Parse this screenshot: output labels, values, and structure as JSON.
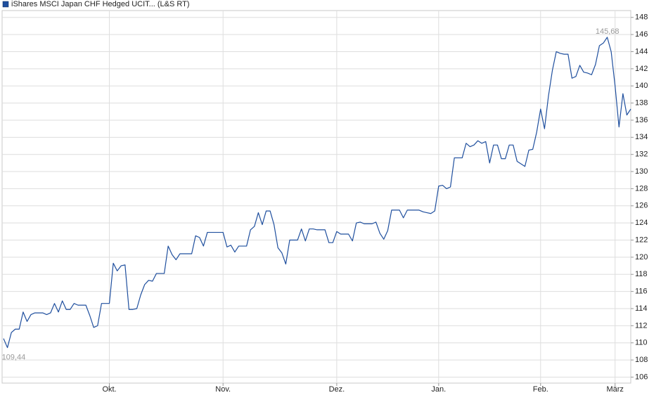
{
  "chart_data": {
    "type": "line",
    "categories": [
      null,
      null,
      null,
      null,
      null,
      null,
      null,
      null,
      null,
      null,
      null,
      null,
      null,
      null,
      null,
      null,
      null,
      null,
      null,
      null,
      null,
      null,
      null,
      null,
      null,
      null,
      null,
      "Okt.",
      null,
      null,
      null,
      null,
      null,
      null,
      null,
      null,
      null,
      null,
      null,
      null,
      null,
      null,
      null,
      null,
      null,
      null,
      null,
      null,
      null,
      null,
      null,
      null,
      null,
      null,
      null,
      null,
      "Nov.",
      null,
      null,
      null,
      null,
      null,
      null,
      null,
      null,
      null,
      null,
      null,
      null,
      null,
      null,
      null,
      null,
      null,
      null,
      null,
      null,
      null,
      null,
      null,
      null,
      null,
      null,
      null,
      null,
      "Dez.",
      null,
      null,
      null,
      null,
      null,
      null,
      null,
      null,
      null,
      null,
      null,
      null,
      null,
      null,
      null,
      null,
      null,
      null,
      null,
      null,
      null,
      null,
      null,
      null,
      null,
      "Jan.",
      null,
      null,
      null,
      null,
      null,
      null,
      null,
      null,
      null,
      null,
      null,
      null,
      null,
      null,
      null,
      null,
      null,
      null,
      null,
      null,
      null,
      null,
      null,
      null,
      null,
      "Feb.",
      null,
      null,
      null,
      null,
      null,
      null,
      null,
      null,
      null,
      null,
      null,
      null,
      null,
      null,
      null,
      null,
      null,
      null,
      "März",
      null,
      null,
      null,
      null
    ],
    "series": [
      {
        "name": "iShares MSCI Japan CHF Hedged UCIT... (L&S RT)",
        "color": "#1f4f9e",
        "values": [
          110.5,
          109.44,
          111.2,
          111.6,
          111.6,
          113.6,
          112.5,
          113.3,
          113.5,
          113.5,
          113.5,
          113.3,
          113.5,
          114.6,
          113.6,
          114.9,
          113.9,
          113.9,
          114.6,
          114.4,
          114.4,
          114.4,
          113.2,
          111.8,
          112.0,
          114.6,
          114.6,
          114.6,
          119.3,
          118.4,
          119.0,
          119.1,
          113.9,
          113.9,
          114.0,
          115.6,
          116.8,
          117.3,
          117.2,
          118.1,
          118.1,
          118.1,
          121.3,
          120.3,
          119.7,
          120.4,
          120.4,
          120.4,
          120.4,
          122.5,
          122.3,
          121.3,
          122.9,
          122.9,
          122.9,
          122.9,
          122.9,
          121.2,
          121.4,
          120.6,
          121.3,
          121.3,
          121.3,
          123.2,
          123.6,
          125.2,
          123.8,
          125.4,
          125.4,
          123.8,
          121.1,
          120.5,
          119.2,
          122.0,
          122.0,
          122.0,
          123.3,
          121.9,
          123.3,
          123.3,
          123.2,
          123.2,
          123.2,
          121.7,
          121.7,
          123.0,
          122.7,
          122.7,
          122.7,
          121.9,
          124.0,
          124.1,
          123.9,
          123.9,
          123.9,
          124.1,
          122.8,
          122.1,
          123.1,
          125.5,
          125.5,
          125.5,
          124.6,
          125.5,
          125.5,
          125.5,
          125.5,
          125.3,
          125.2,
          125.1,
          125.4,
          128.3,
          128.4,
          128.0,
          128.2,
          131.6,
          131.6,
          131.6,
          133.3,
          132.9,
          133.1,
          133.6,
          133.3,
          133.5,
          131.0,
          133.1,
          133.1,
          131.5,
          131.5,
          133.1,
          133.1,
          131.2,
          130.9,
          130.6,
          132.5,
          132.6,
          134.6,
          137.3,
          135.0,
          138.8,
          141.8,
          144.0,
          143.8,
          143.7,
          143.7,
          140.9,
          141.1,
          142.4,
          141.6,
          141.5,
          141.3,
          142.5,
          144.7,
          145.0,
          145.68,
          144.0,
          140.0,
          135.2,
          139.1,
          136.6,
          137.3
        ],
        "value_labels": [
          null,
          "109,44",
          null,
          null,
          null,
          null,
          null,
          null,
          null,
          null,
          null,
          null,
          null,
          null,
          null,
          null,
          null,
          null,
          null,
          null,
          null,
          null,
          null,
          null,
          null,
          null,
          null,
          null,
          null,
          null,
          null,
          null,
          null,
          null,
          null,
          null,
          null,
          null,
          null,
          null,
          null,
          null,
          null,
          null,
          null,
          null,
          null,
          null,
          null,
          null,
          null,
          null,
          null,
          null,
          null,
          null,
          null,
          null,
          null,
          null,
          null,
          null,
          null,
          null,
          null,
          null,
          null,
          null,
          null,
          null,
          null,
          null,
          null,
          null,
          null,
          null,
          null,
          null,
          null,
          null,
          null,
          null,
          null,
          null,
          null,
          null,
          null,
          null,
          null,
          null,
          null,
          null,
          null,
          null,
          null,
          null,
          null,
          null,
          null,
          null,
          null,
          null,
          null,
          null,
          null,
          null,
          null,
          null,
          null,
          null,
          null,
          null,
          null,
          null,
          null,
          null,
          null,
          null,
          null,
          null,
          null,
          null,
          null,
          null,
          null,
          null,
          null,
          null,
          null,
          null,
          null,
          null,
          null,
          null,
          null,
          null,
          null,
          null,
          null,
          null,
          null,
          null,
          null,
          null,
          null,
          null,
          null,
          null,
          null,
          null,
          null,
          null,
          null,
          null,
          "145,68",
          null,
          null,
          null,
          null,
          null,
          null
        ]
      }
    ],
    "ylim": [
      105.3,
      148.8
    ],
    "yticks": [
      106,
      108,
      110,
      112,
      114,
      116,
      118,
      120,
      122,
      124,
      126,
      128,
      130,
      132,
      134,
      136,
      138,
      140,
      142,
      144,
      146,
      148
    ],
    "grid": true,
    "legend": "top-left"
  }
}
